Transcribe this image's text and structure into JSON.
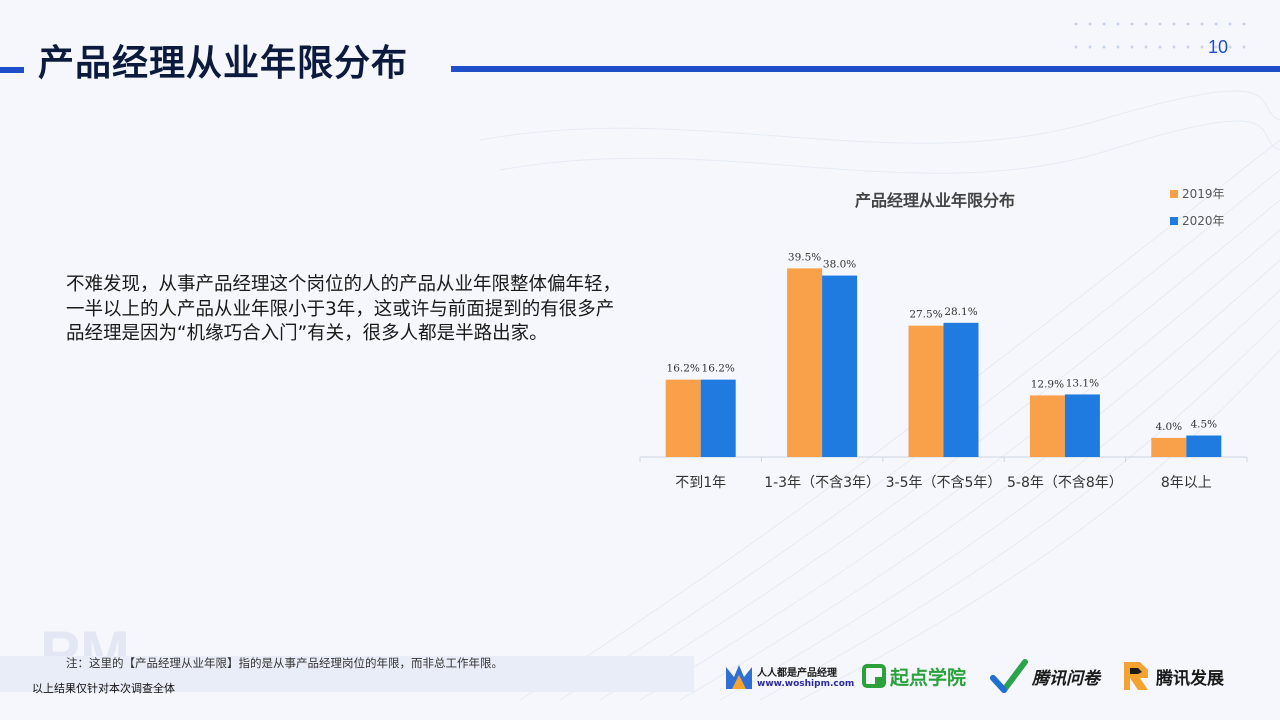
{
  "page": {
    "title": "产品经理从业年限分布",
    "number": "10"
  },
  "body": {
    "paragraph": "不难发现，从事产品经理这个岗位的人的产品从业年限整体偏年轻，一半以上的人产品从业年限小于3年，这或许与前面提到的有很多产品经理是因为“机缘巧合入门”有关，很多人都是半路出家。"
  },
  "footer": {
    "note": "注：这里的【产品经理从业年限】指的是从事产品经理岗位的年限，而非总工作年限。",
    "result": "以上结果仅针对本次调查全体",
    "watermark": "PM",
    "logos": {
      "woshipm_name": "人人都是产品经理",
      "woshipm_url": "www.woshipm.com",
      "qidian": "起点学院",
      "wenjuan": "腾讯问卷",
      "fazhan": "腾讯发展"
    }
  },
  "colors": {
    "accent": "#1f4fc8",
    "series_2019": "#f9a04b",
    "series_2020": "#1f7be0"
  },
  "chart_data": {
    "type": "bar",
    "title": "产品经理从业年限分布",
    "categories": [
      "不到1年",
      "1-3年（不含3年）",
      "3-5年（不含5年）",
      "5-8年（不含8年）",
      "8年以上"
    ],
    "series": [
      {
        "name": "2019年",
        "values": [
          16.2,
          39.5,
          27.5,
          12.9,
          4.0
        ],
        "labels": [
          "16.2%",
          "39.5%",
          "27.5%",
          "12.9%",
          "4.0%"
        ]
      },
      {
        "name": "2020年",
        "values": [
          16.2,
          38.0,
          28.1,
          13.1,
          4.5
        ],
        "labels": [
          "16.2%",
          "38.0%",
          "28.1%",
          "13.1%",
          "4.5%"
        ]
      }
    ],
    "ylim": [
      0,
      40
    ],
    "legend": "top-right",
    "grid": false
  }
}
